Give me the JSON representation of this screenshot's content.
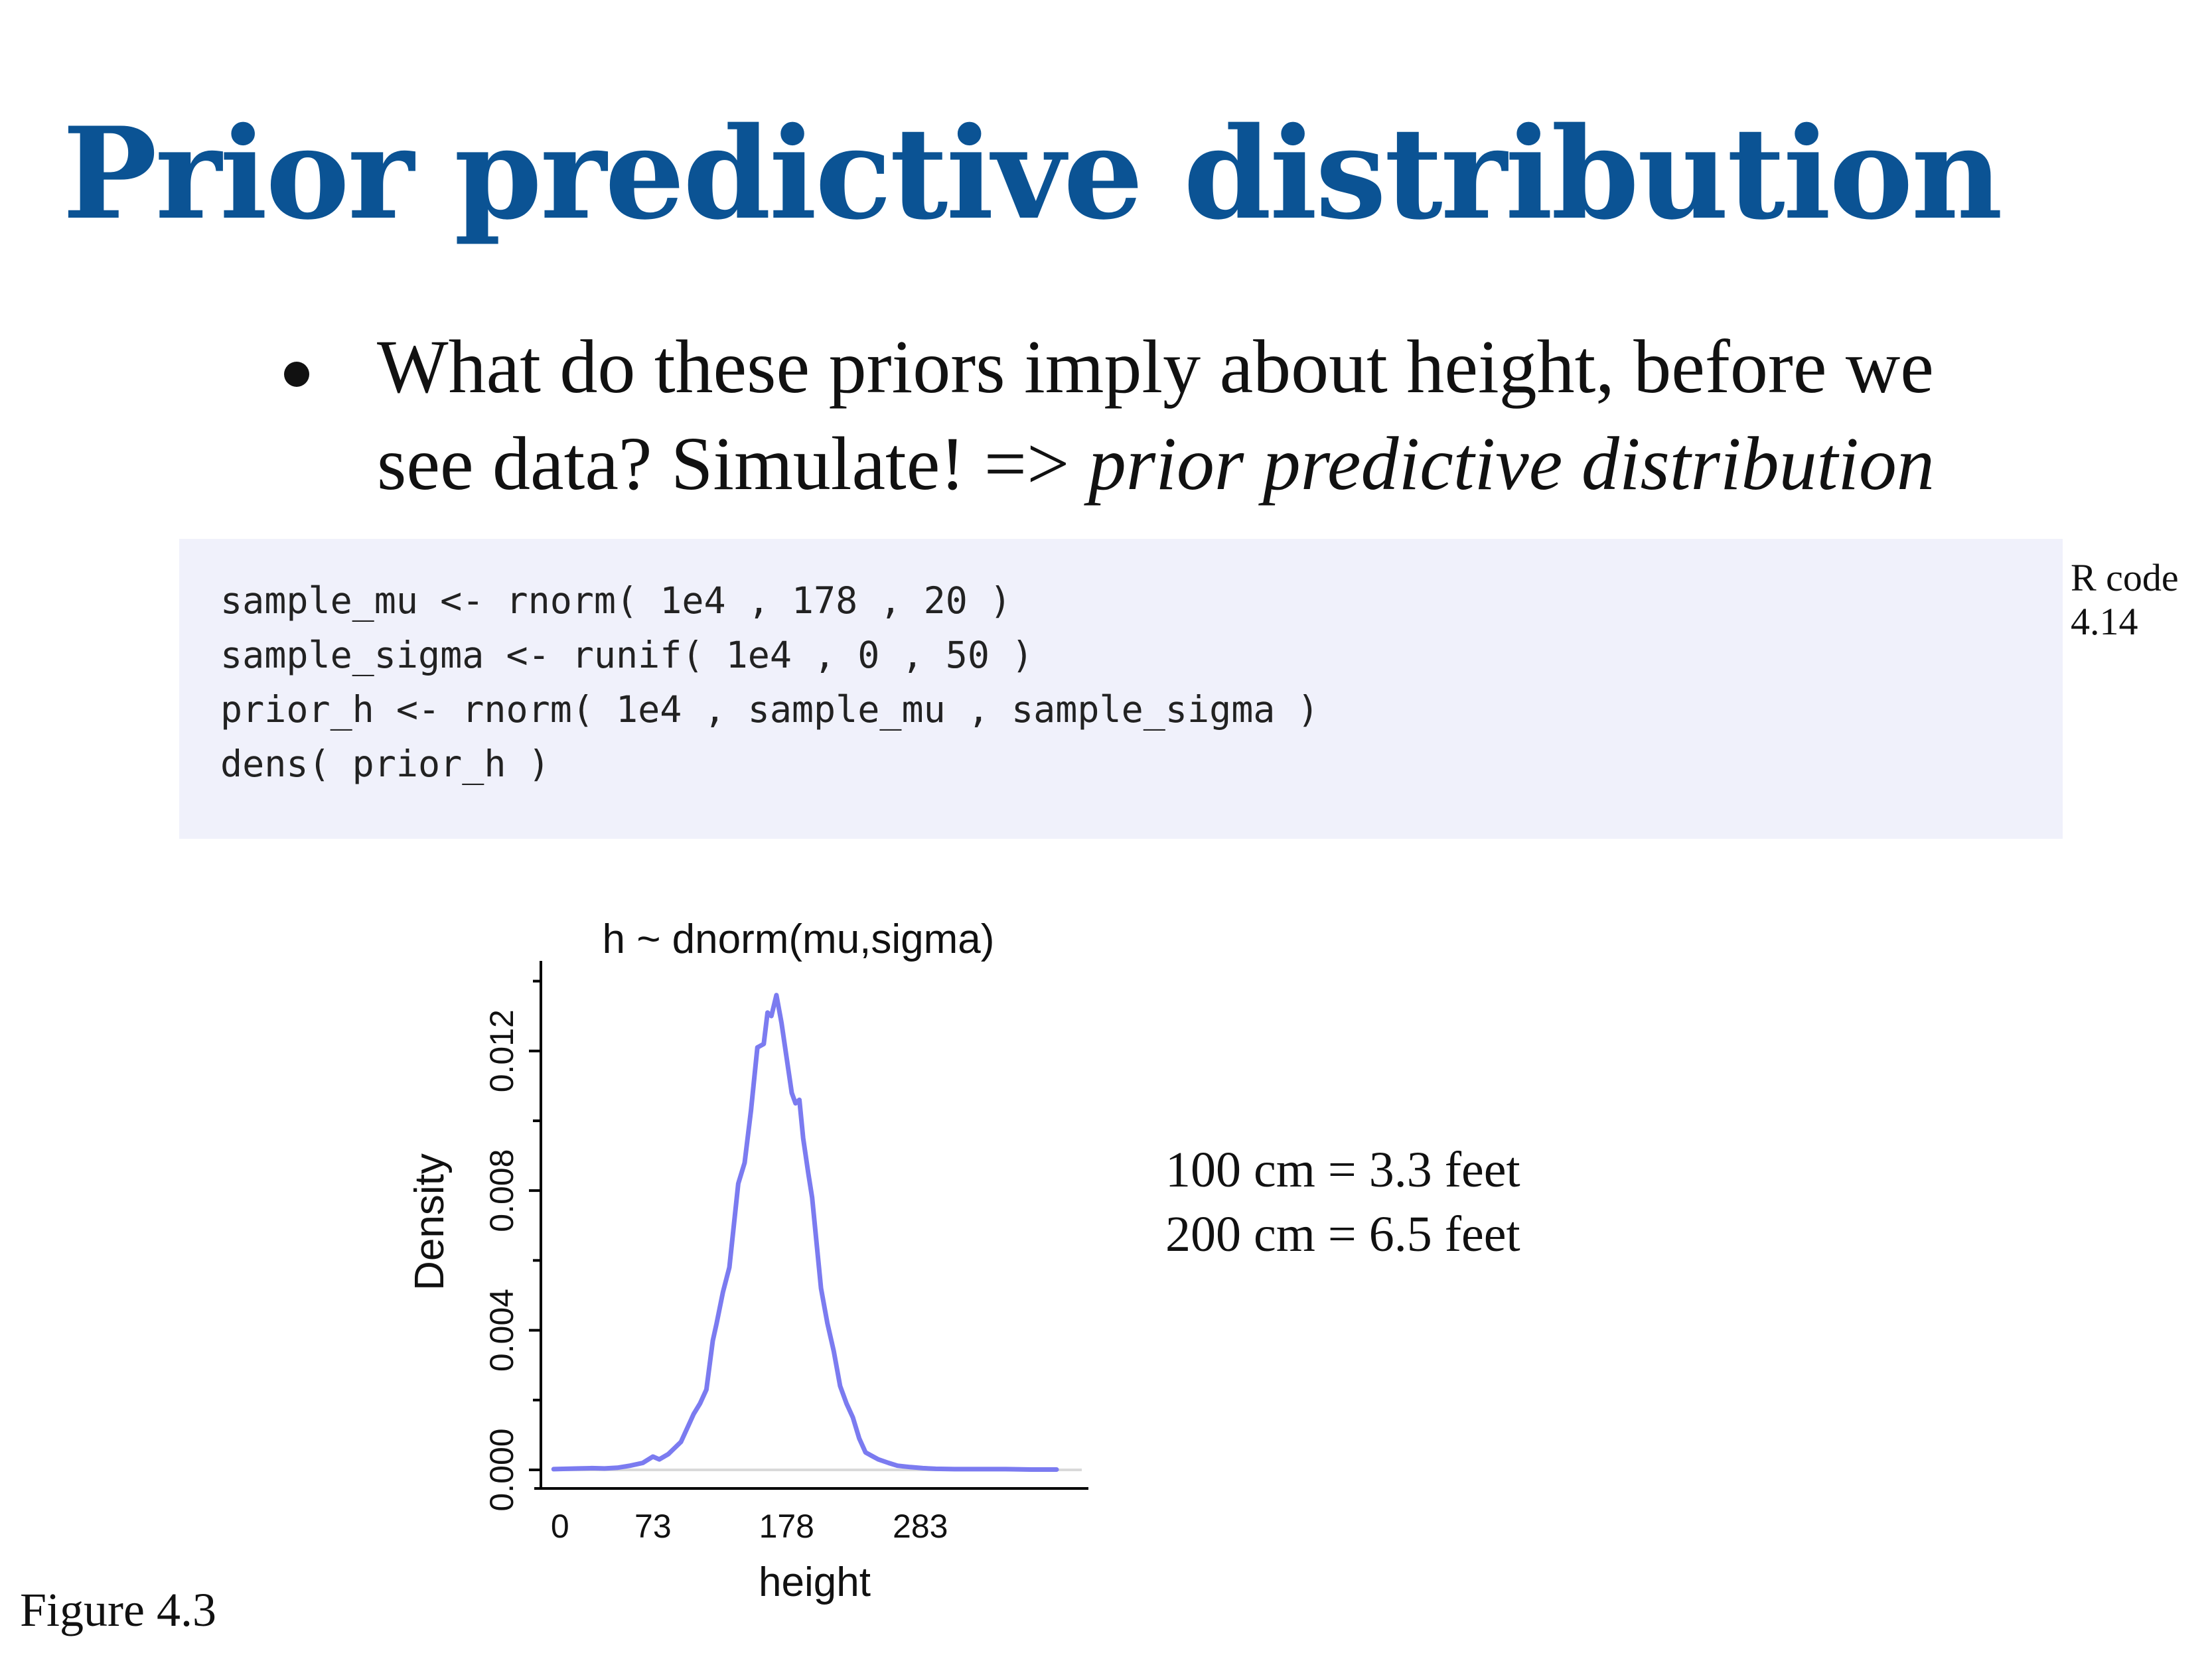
{
  "slide": {
    "title": "Prior predictive distribution",
    "bullet": {
      "text": "What do these priors imply about height, before we see data? Simulate! => ",
      "emphasis": "prior predictive distribution"
    },
    "code": {
      "lines": [
        "sample_mu <- rnorm( 1e4 , 178 , 20 )",
        "sample_sigma <- runif( 1e4 , 0 , 50 )",
        "prior_h <- rnorm( 1e4 , sample_mu , sample_sigma )",
        "dens( prior_h )"
      ],
      "label_line1": "R code",
      "label_line2": "4.14"
    },
    "note": {
      "line1": "100 cm = 3.3 feet",
      "line2": "200 cm = 6.5 feet"
    },
    "figure_label": "Figure 4.3"
  },
  "colors": {
    "title": "#0b5394",
    "line": "#7b7bf0",
    "code_background": "#f0f1fb"
  },
  "chart_data": {
    "type": "line",
    "title": "h ~ dnorm(mu,sigma)",
    "xlabel": "height",
    "ylabel": "Density",
    "x_ticks": [
      0,
      73,
      178,
      283
    ],
    "y_ticks": [
      "0.000",
      "0.004",
      "0.008",
      "0.012"
    ],
    "xlim": [
      -15,
      415
    ],
    "ylim": [
      0,
      0.0142
    ],
    "grid": false,
    "reference_line_y": 0,
    "series": [
      {
        "x": [
          -5,
          5,
          15,
          25,
          35,
          45,
          55,
          65,
          73,
          78,
          85,
          95,
          100,
          105,
          110,
          115,
          120,
          123,
          128,
          133,
          140,
          145,
          150,
          155,
          160,
          163,
          166,
          170,
          174,
          178,
          182,
          185,
          188,
          191,
          195,
          198,
          205,
          210,
          215,
          220,
          225,
          230,
          235,
          240,
          245,
          250,
          258,
          265,
          275,
          285,
          295,
          310,
          330,
          350,
          370,
          390
        ],
        "y": [
          2e-05,
          3e-05,
          4e-05,
          5e-05,
          4e-05,
          6e-05,
          0.00012,
          0.0002,
          0.00038,
          0.0003,
          0.00045,
          0.0008,
          0.0012,
          0.0016,
          0.0019,
          0.0023,
          0.0037,
          0.0042,
          0.0051,
          0.0058,
          0.0082,
          0.0088,
          0.0103,
          0.0121,
          0.0122,
          0.0131,
          0.013,
          0.0136,
          0.0128,
          0.0118,
          0.0108,
          0.0105,
          0.0106,
          0.0095,
          0.0085,
          0.0078,
          0.0052,
          0.0042,
          0.0034,
          0.0024,
          0.0019,
          0.0015,
          0.0009,
          0.0005,
          0.0004,
          0.0003,
          0.0002,
          0.00012,
          8e-05,
          5e-05,
          3e-05,
          2e-05,
          2e-05,
          2e-05,
          1e-05,
          1e-05
        ]
      }
    ]
  }
}
